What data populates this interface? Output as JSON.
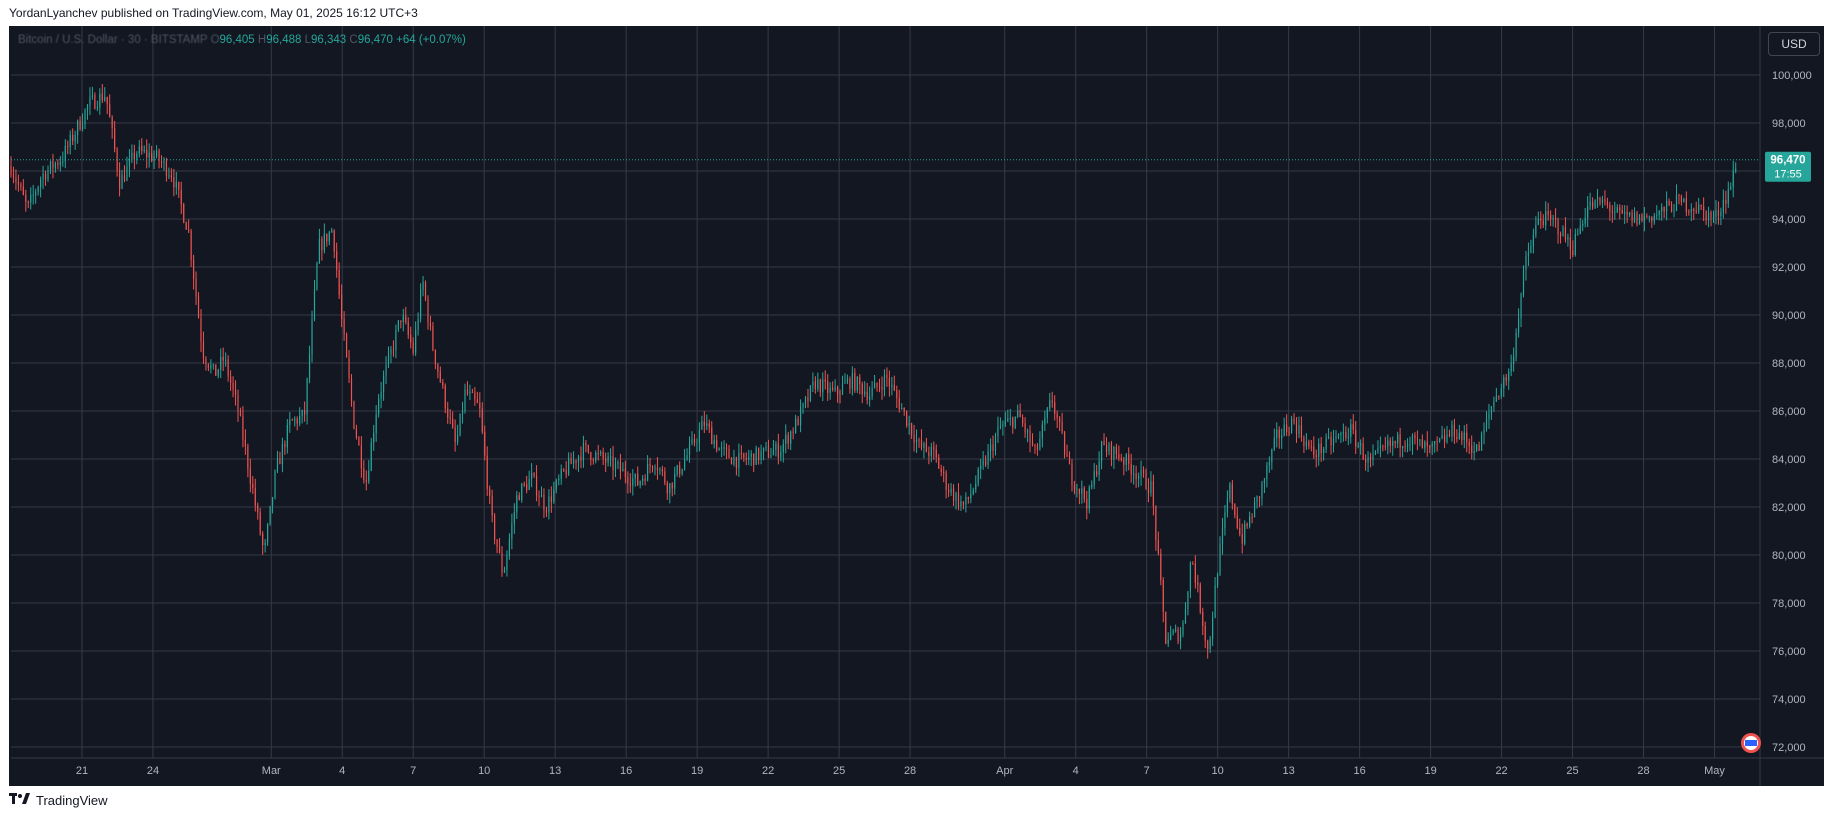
{
  "header": {
    "caption": "YordanLyanchev published on TradingView.com, May 01, 2025 16:12 UTC+3"
  },
  "legend": {
    "symbol": "Bitcoin / U.S. Dollar · 30 · BITSTAMP",
    "open_label": "O",
    "open": "96,405",
    "high_label": "H",
    "high": "96,488",
    "low_label": "L",
    "low": "96,343",
    "close_label": "C",
    "close": "96,470",
    "change": "+64 (+0.07%)"
  },
  "currency_button": "USD",
  "price_tag": {
    "price": "96,470",
    "countdown": "17:55"
  },
  "footer": {
    "brand": "TradingView",
    "logo_icon": "tradingview-logo-icon"
  },
  "colors": {
    "background": "#131722",
    "up": "#26a69a",
    "down": "#ef5350",
    "grid": "#363a45",
    "text": "#b2b5be"
  },
  "chart_data": {
    "type": "line",
    "ylim": [
      72000,
      102000
    ],
    "y_ticks": [
      "100,000",
      "98,000",
      "96,000",
      "94,000",
      "92,000",
      "90,000",
      "88,000",
      "86,000",
      "84,000",
      "82,000",
      "80,000",
      "78,000",
      "76,000",
      "74,000",
      "72,000"
    ],
    "x_ticks": [
      "21",
      "24",
      "Mar",
      "4",
      "7",
      "10",
      "13",
      "16",
      "19",
      "22",
      "25",
      "28",
      "Apr",
      "4",
      "7",
      "10",
      "13",
      "16",
      "19",
      "22",
      "25",
      "28",
      "May"
    ],
    "x_tick_days": [
      3,
      6,
      11,
      14,
      17,
      20,
      23,
      26,
      29,
      32,
      35,
      38,
      42,
      45,
      48,
      51,
      54,
      57,
      60,
      63,
      66,
      69,
      72
    ],
    "x_range_days": [
      0,
      73.5
    ],
    "series": [
      {
        "values": [
          [
            0,
            96200
          ],
          [
            0.7,
            94400
          ],
          [
            1.3,
            95800
          ],
          [
            2.2,
            96600
          ],
          [
            3.3,
            98800
          ],
          [
            4.0,
            99200
          ],
          [
            4.6,
            95500
          ],
          [
            5.3,
            96800
          ],
          [
            6.1,
            96600
          ],
          [
            6.8,
            95900
          ],
          [
            7.5,
            93500
          ],
          [
            8.1,
            88500
          ],
          [
            8.6,
            87500
          ],
          [
            9.0,
            88200
          ],
          [
            9.6,
            86000
          ],
          [
            10.2,
            82800
          ],
          [
            10.7,
            80000
          ],
          [
            11.2,
            83500
          ],
          [
            11.8,
            85500
          ],
          [
            12.4,
            85800
          ],
          [
            13.0,
            92800
          ],
          [
            13.6,
            93600
          ],
          [
            14.0,
            89500
          ],
          [
            14.5,
            85500
          ],
          [
            15.0,
            83000
          ],
          [
            15.5,
            86500
          ],
          [
            16.0,
            88200
          ],
          [
            16.5,
            90000
          ],
          [
            17.0,
            88500
          ],
          [
            17.4,
            91400
          ],
          [
            17.8,
            88800
          ],
          [
            18.3,
            86600
          ],
          [
            18.8,
            84500
          ],
          [
            19.2,
            86800
          ],
          [
            19.8,
            86100
          ],
          [
            20.3,
            81500
          ],
          [
            20.8,
            79200
          ],
          [
            21.4,
            82500
          ],
          [
            22.0,
            83200
          ],
          [
            22.6,
            82000
          ],
          [
            23.4,
            83500
          ],
          [
            24.2,
            84400
          ],
          [
            25.0,
            84000
          ],
          [
            25.8,
            83500
          ],
          [
            26.5,
            83000
          ],
          [
            27.2,
            84000
          ],
          [
            27.8,
            82800
          ],
          [
            28.6,
            84200
          ],
          [
            29.3,
            85500
          ],
          [
            30.0,
            84300
          ],
          [
            30.8,
            83900
          ],
          [
            31.7,
            84200
          ],
          [
            32.5,
            84400
          ],
          [
            33.2,
            85500
          ],
          [
            34.0,
            87200
          ],
          [
            34.8,
            86700
          ],
          [
            35.5,
            87300
          ],
          [
            36.3,
            86700
          ],
          [
            37.0,
            87400
          ],
          [
            37.7,
            86000
          ],
          [
            38.4,
            84500
          ],
          [
            39.0,
            84200
          ],
          [
            39.6,
            82800
          ],
          [
            40.3,
            82000
          ],
          [
            41.0,
            83500
          ],
          [
            41.8,
            85300
          ],
          [
            42.6,
            85800
          ],
          [
            43.3,
            84200
          ],
          [
            44.0,
            86500
          ],
          [
            44.8,
            83300
          ],
          [
            45.5,
            82200
          ],
          [
            46.1,
            84500
          ],
          [
            46.8,
            84200
          ],
          [
            47.6,
            83400
          ],
          [
            48.2,
            82800
          ],
          [
            48.8,
            76500
          ],
          [
            49.5,
            76800
          ],
          [
            49.9,
            80000
          ],
          [
            50.6,
            75900
          ],
          [
            51.0,
            79500
          ],
          [
            51.5,
            82800
          ],
          [
            52.0,
            80600
          ],
          [
            52.8,
            82600
          ],
          [
            53.5,
            84900
          ],
          [
            54.2,
            85600
          ],
          [
            55.0,
            84200
          ],
          [
            55.8,
            84700
          ],
          [
            56.6,
            85200
          ],
          [
            57.4,
            83800
          ],
          [
            58.2,
            84500
          ],
          [
            59.0,
            84900
          ],
          [
            60.0,
            84300
          ],
          [
            61.0,
            85200
          ],
          [
            62.0,
            84300
          ],
          [
            62.6,
            86300
          ],
          [
            63.4,
            87800
          ],
          [
            64.0,
            92100
          ],
          [
            64.6,
            94100
          ],
          [
            65.3,
            93800
          ],
          [
            66.0,
            92800
          ],
          [
            66.6,
            94500
          ],
          [
            67.3,
            94700
          ],
          [
            68.0,
            94100
          ],
          [
            68.8,
            94000
          ],
          [
            69.6,
            94200
          ],
          [
            70.4,
            94700
          ],
          [
            71.2,
            94500
          ],
          [
            72.0,
            94000
          ],
          [
            72.6,
            95200
          ],
          [
            73.0,
            96470
          ]
        ]
      }
    ]
  }
}
